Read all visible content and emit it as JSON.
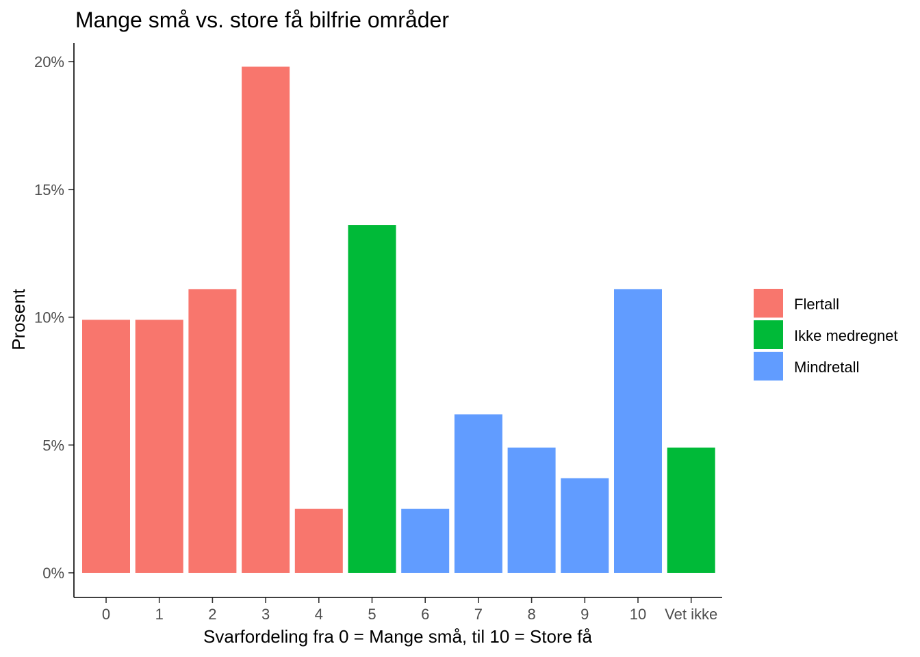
{
  "chart_data": {
    "type": "bar",
    "title": "Mange små vs. store få bilfrie områder",
    "xlabel": "Svarfordeling fra 0 = Mange små, til 10 = Store få",
    "ylabel": "Prosent",
    "categories": [
      "0",
      "1",
      "2",
      "3",
      "4",
      "5",
      "6",
      "7",
      "8",
      "9",
      "10",
      "Vet ikke"
    ],
    "values": [
      9.9,
      9.9,
      11.1,
      19.8,
      2.5,
      13.6,
      2.5,
      6.2,
      4.9,
      3.7,
      11.1,
      4.9
    ],
    "groups": [
      "Flertall",
      "Flertall",
      "Flertall",
      "Flertall",
      "Flertall",
      "Ikke medregnet",
      "Mindretall",
      "Mindretall",
      "Mindretall",
      "Mindretall",
      "Mindretall",
      "Ikke medregnet"
    ],
    "ylim": [
      0,
      20
    ],
    "yticks": [
      0,
      5,
      10,
      15,
      20
    ],
    "ytick_labels": [
      "0%",
      "5%",
      "10%",
      "15%",
      "20%"
    ],
    "legend": {
      "position": "right",
      "entries": [
        {
          "name": "Flertall",
          "color": "#F8766D"
        },
        {
          "name": "Ikke medregnet",
          "color": "#00BA38"
        },
        {
          "name": "Mindretall",
          "color": "#619CFF"
        }
      ]
    },
    "grid": false
  }
}
